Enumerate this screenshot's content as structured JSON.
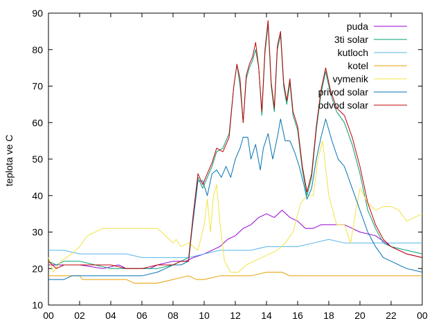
{
  "chart_data": {
    "type": "line",
    "title": "",
    "xlabel": "",
    "ylabel": "teplota ve C",
    "x_ticks": [
      "00",
      "02",
      "04",
      "06",
      "08",
      "10",
      "12",
      "14",
      "16",
      "18",
      "20",
      "22",
      "00"
    ],
    "x_tick_hours": [
      0,
      2,
      4,
      6,
      8,
      10,
      12,
      14,
      16,
      18,
      20,
      22,
      24
    ],
    "xlim": [
      0,
      24
    ],
    "ylim": [
      10,
      90
    ],
    "y_ticks": [
      10,
      20,
      30,
      40,
      50,
      60,
      70,
      80,
      90
    ],
    "grid": false,
    "legend_position": "top-right",
    "series": [
      {
        "name": "puda",
        "color": "#9400d3",
        "points": [
          [
            0,
            21
          ],
          [
            2,
            21
          ],
          [
            3.5,
            20
          ],
          [
            4.5,
            21
          ],
          [
            5,
            20
          ],
          [
            6.5,
            20
          ],
          [
            7,
            21
          ],
          [
            8,
            22
          ],
          [
            8.8,
            22
          ],
          [
            9.3,
            23
          ],
          [
            10,
            24
          ],
          [
            11,
            26
          ],
          [
            11.5,
            28
          ],
          [
            12,
            29
          ],
          [
            12.5,
            31
          ],
          [
            13,
            32
          ],
          [
            13.5,
            34
          ],
          [
            14,
            35
          ],
          [
            14.5,
            34
          ],
          [
            15,
            36
          ],
          [
            15.5,
            34
          ],
          [
            16,
            33
          ],
          [
            16.5,
            31
          ],
          [
            17,
            31
          ],
          [
            17.5,
            32
          ],
          [
            18,
            32
          ],
          [
            19,
            32
          ],
          [
            19.5,
            31
          ],
          [
            20,
            30
          ],
          [
            21,
            29
          ],
          [
            22,
            26
          ],
          [
            23,
            24
          ],
          [
            24,
            23
          ]
        ]
      },
      {
        "name": "3ti solar",
        "color": "#009e73",
        "points": [
          [
            0,
            22
          ],
          [
            0.5,
            21
          ],
          [
            1,
            22
          ],
          [
            2,
            22
          ],
          [
            3,
            21
          ],
          [
            4,
            20
          ],
          [
            5,
            20
          ],
          [
            6,
            20
          ],
          [
            7,
            20
          ],
          [
            8,
            21
          ],
          [
            8.5,
            22
          ],
          [
            9,
            23
          ],
          [
            9.3,
            35
          ],
          [
            9.6,
            45
          ],
          [
            9.9,
            42
          ],
          [
            10.2,
            45
          ],
          [
            10.5,
            48
          ],
          [
            10.8,
            52
          ],
          [
            11.2,
            53
          ],
          [
            11.6,
            57
          ],
          [
            11.9,
            70
          ],
          [
            12.1,
            76
          ],
          [
            12.3,
            70
          ],
          [
            12.5,
            60
          ],
          [
            12.7,
            72
          ],
          [
            12.9,
            75
          ],
          [
            13.1,
            77
          ],
          [
            13.3,
            80
          ],
          [
            13.5,
            75
          ],
          [
            13.7,
            62
          ],
          [
            13.9,
            79
          ],
          [
            14.1,
            87
          ],
          [
            14.3,
            70
          ],
          [
            14.5,
            63
          ],
          [
            14.7,
            80
          ],
          [
            14.9,
            84
          ],
          [
            15.1,
            70
          ],
          [
            15.3,
            65
          ],
          [
            15.5,
            71
          ],
          [
            15.7,
            62
          ],
          [
            16,
            58
          ],
          [
            16.3,
            47
          ],
          [
            16.6,
            40
          ],
          [
            16.9,
            45
          ],
          [
            17.2,
            58
          ],
          [
            17.5,
            68
          ],
          [
            17.8,
            74
          ],
          [
            18.1,
            68
          ],
          [
            18.5,
            63
          ],
          [
            19,
            60
          ],
          [
            19.5,
            54
          ],
          [
            20,
            46
          ],
          [
            20.5,
            36
          ],
          [
            21,
            31
          ],
          [
            21.5,
            27
          ],
          [
            22,
            26
          ],
          [
            23,
            25
          ],
          [
            24,
            24
          ]
        ]
      },
      {
        "name": "kutloch",
        "color": "#56b4e9",
        "points": [
          [
            0,
            25
          ],
          [
            1,
            25
          ],
          [
            2,
            24
          ],
          [
            3,
            24
          ],
          [
            4,
            24
          ],
          [
            5,
            24
          ],
          [
            6,
            23
          ],
          [
            7,
            23
          ],
          [
            8,
            23
          ],
          [
            9,
            23
          ],
          [
            10,
            24
          ],
          [
            11,
            25
          ],
          [
            12,
            25
          ],
          [
            13,
            25
          ],
          [
            14,
            26
          ],
          [
            15,
            26
          ],
          [
            16,
            26
          ],
          [
            17,
            27
          ],
          [
            18,
            28
          ],
          [
            19,
            27
          ],
          [
            20,
            27
          ],
          [
            21,
            27
          ],
          [
            22,
            27
          ],
          [
            23,
            27
          ],
          [
            24,
            27
          ]
        ]
      },
      {
        "name": "kotel",
        "color": "#e69f00",
        "points": [
          [
            0,
            18
          ],
          [
            2,
            18
          ],
          [
            2.2,
            17
          ],
          [
            4,
            17
          ],
          [
            5,
            17
          ],
          [
            5.5,
            16
          ],
          [
            7,
            16
          ],
          [
            8,
            17
          ],
          [
            9,
            18
          ],
          [
            9.5,
            17
          ],
          [
            10,
            17
          ],
          [
            11,
            18
          ],
          [
            13,
            18
          ],
          [
            14,
            19
          ],
          [
            15,
            19
          ],
          [
            15.5,
            18
          ],
          [
            18,
            18
          ],
          [
            20,
            18
          ],
          [
            22,
            18
          ],
          [
            24,
            18
          ]
        ]
      },
      {
        "name": "vymenik",
        "color": "#f0e442",
        "points": [
          [
            0,
            23
          ],
          [
            0.3,
            19
          ],
          [
            0.8,
            22
          ],
          [
            1.5,
            24
          ],
          [
            2,
            26
          ],
          [
            2.5,
            29
          ],
          [
            3,
            30
          ],
          [
            3.5,
            31
          ],
          [
            4,
            31
          ],
          [
            5,
            31
          ],
          [
            6,
            31
          ],
          [
            7,
            31
          ],
          [
            7.5,
            29
          ],
          [
            8,
            27
          ],
          [
            8.2,
            28
          ],
          [
            8.5,
            26
          ],
          [
            9,
            27
          ],
          [
            9.3,
            26
          ],
          [
            9.6,
            25
          ],
          [
            10,
            32
          ],
          [
            10.2,
            39
          ],
          [
            10.4,
            30
          ],
          [
            10.6,
            40
          ],
          [
            10.8,
            43
          ],
          [
            11,
            33
          ],
          [
            11.3,
            22
          ],
          [
            11.7,
            19
          ],
          [
            12.2,
            19
          ],
          [
            12.7,
            21
          ],
          [
            13.2,
            22
          ],
          [
            13.7,
            23
          ],
          [
            14.2,
            24
          ],
          [
            14.7,
            25
          ],
          [
            15.2,
            27
          ],
          [
            15.7,
            30
          ],
          [
            16.2,
            38
          ],
          [
            16.6,
            40
          ],
          [
            17,
            40
          ],
          [
            17.3,
            50
          ],
          [
            17.6,
            55
          ],
          [
            18,
            40
          ],
          [
            18.5,
            32
          ],
          [
            19,
            32
          ],
          [
            19.4,
            27
          ],
          [
            19.7,
            35
          ],
          [
            20,
            42
          ],
          [
            20.5,
            38
          ],
          [
            21,
            36
          ],
          [
            21.5,
            37
          ],
          [
            22,
            37
          ],
          [
            22.5,
            36
          ],
          [
            23,
            33
          ],
          [
            23.5,
            34
          ],
          [
            24,
            35
          ]
        ]
      },
      {
        "name": "privod solar",
        "color": "#0072b2",
        "points": [
          [
            0,
            17
          ],
          [
            1,
            17
          ],
          [
            1.5,
            18
          ],
          [
            3,
            18
          ],
          [
            4,
            18
          ],
          [
            5,
            18
          ],
          [
            6,
            18
          ],
          [
            7,
            19
          ],
          [
            7.5,
            20
          ],
          [
            8,
            21
          ],
          [
            8.5,
            21
          ],
          [
            9,
            22
          ],
          [
            9.2,
            30
          ],
          [
            9.6,
            44
          ],
          [
            9.9,
            44
          ],
          [
            10.2,
            40
          ],
          [
            10.5,
            46
          ],
          [
            10.8,
            47
          ],
          [
            11.1,
            45
          ],
          [
            11.4,
            48
          ],
          [
            11.7,
            45
          ],
          [
            12,
            50
          ],
          [
            12.3,
            53
          ],
          [
            12.5,
            56
          ],
          [
            12.8,
            56
          ],
          [
            13,
            50
          ],
          [
            13.3,
            54
          ],
          [
            13.6,
            47
          ],
          [
            13.8,
            53
          ],
          [
            14.1,
            57
          ],
          [
            14.4,
            50
          ],
          [
            14.7,
            56
          ],
          [
            14.9,
            61
          ],
          [
            15.2,
            55
          ],
          [
            15.5,
            55
          ],
          [
            15.8,
            52
          ],
          [
            16.1,
            48
          ],
          [
            16.4,
            43
          ],
          [
            16.6,
            39
          ],
          [
            16.9,
            42
          ],
          [
            17.2,
            50
          ],
          [
            17.5,
            56
          ],
          [
            17.8,
            61
          ],
          [
            18.2,
            55
          ],
          [
            18.6,
            50
          ],
          [
            19,
            48
          ],
          [
            19.5,
            42
          ],
          [
            20,
            36
          ],
          [
            20.5,
            30
          ],
          [
            21,
            26
          ],
          [
            21.5,
            23
          ],
          [
            22,
            22
          ],
          [
            23,
            20
          ],
          [
            24,
            19
          ]
        ]
      },
      {
        "name": "odvod solar",
        "color": "#c00000",
        "points": [
          [
            0,
            22
          ],
          [
            0.5,
            20
          ],
          [
            1,
            21
          ],
          [
            2,
            21
          ],
          [
            3,
            21
          ],
          [
            4,
            21
          ],
          [
            5,
            20
          ],
          [
            6,
            20
          ],
          [
            7,
            21
          ],
          [
            8,
            21
          ],
          [
            8.5,
            22
          ],
          [
            9,
            22
          ],
          [
            9.3,
            35
          ],
          [
            9.6,
            46
          ],
          [
            9.9,
            43
          ],
          [
            10.2,
            46
          ],
          [
            10.5,
            49
          ],
          [
            10.8,
            53
          ],
          [
            11.2,
            52
          ],
          [
            11.6,
            56
          ],
          [
            11.9,
            70
          ],
          [
            12.1,
            76
          ],
          [
            12.3,
            72
          ],
          [
            12.5,
            60
          ],
          [
            12.7,
            73
          ],
          [
            12.9,
            76
          ],
          [
            13.1,
            78
          ],
          [
            13.3,
            82
          ],
          [
            13.5,
            75
          ],
          [
            13.7,
            63
          ],
          [
            13.9,
            80
          ],
          [
            14.1,
            88
          ],
          [
            14.3,
            71
          ],
          [
            14.5,
            64
          ],
          [
            14.7,
            81
          ],
          [
            14.9,
            85
          ],
          [
            15.1,
            71
          ],
          [
            15.3,
            66
          ],
          [
            15.5,
            72
          ],
          [
            15.7,
            63
          ],
          [
            16,
            59
          ],
          [
            16.3,
            48
          ],
          [
            16.6,
            41
          ],
          [
            16.9,
            46
          ],
          [
            17.2,
            59
          ],
          [
            17.5,
            69
          ],
          [
            17.8,
            75
          ],
          [
            18.1,
            69
          ],
          [
            18.5,
            64
          ],
          [
            19,
            62
          ],
          [
            19.5,
            56
          ],
          [
            20,
            48
          ],
          [
            20.5,
            38
          ],
          [
            21,
            32
          ],
          [
            21.5,
            28
          ],
          [
            22,
            26
          ],
          [
            23,
            24
          ],
          [
            24,
            23
          ]
        ]
      }
    ]
  }
}
